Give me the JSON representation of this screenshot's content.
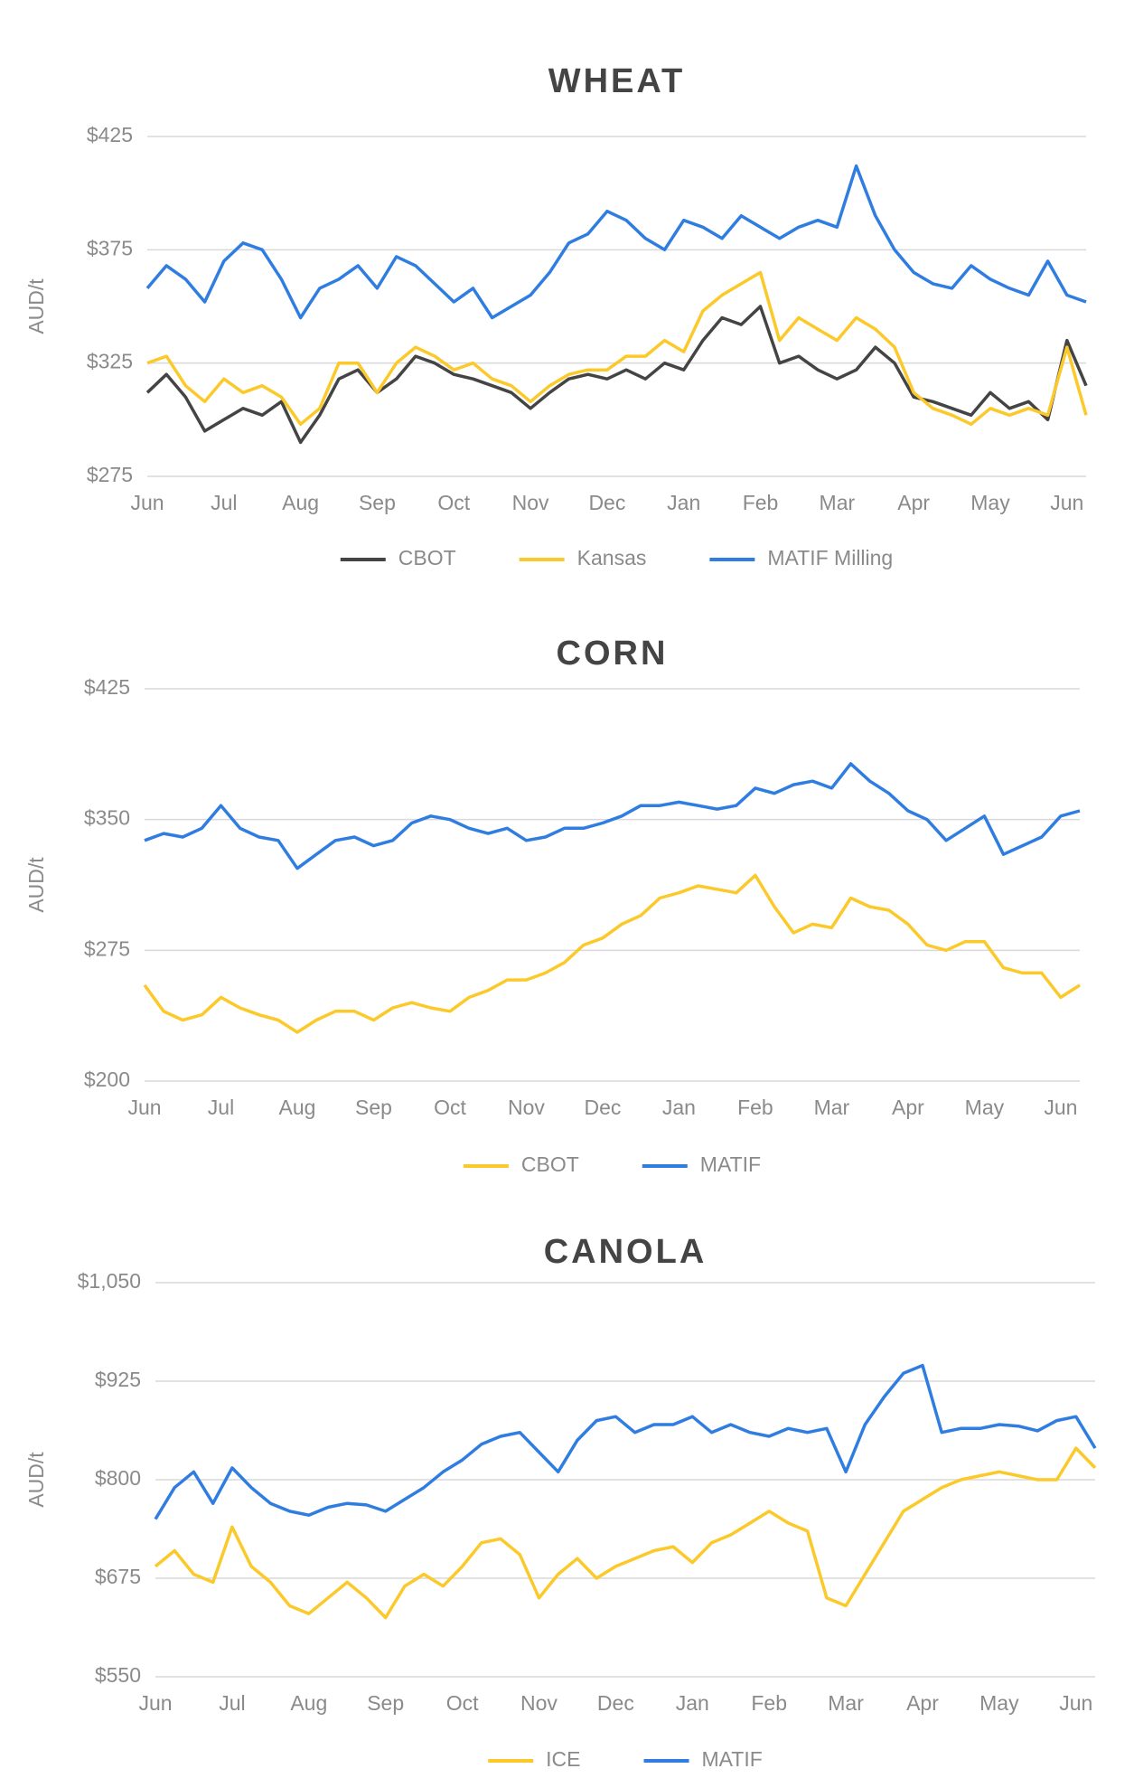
{
  "chart_data": [
    {
      "type": "line",
      "title": "WHEAT",
      "y_label": "AUD/t",
      "categories": [
        "Jun",
        null,
        null,
        null,
        "Jul",
        null,
        null,
        null,
        "Aug",
        null,
        null,
        null,
        "Sep",
        null,
        null,
        null,
        "Oct",
        null,
        null,
        null,
        "Nov",
        null,
        null,
        null,
        "Dec",
        null,
        null,
        null,
        "Jan",
        null,
        null,
        null,
        "Feb",
        null,
        null,
        null,
        "Mar",
        null,
        null,
        null,
        "Apr",
        null,
        null,
        null,
        "May",
        null,
        null,
        null,
        "Jun",
        null
      ],
      "series": [
        {
          "name": "CBOT",
          "color": "#444444",
          "values": [
            312,
            320,
            310,
            295,
            300,
            305,
            302,
            308,
            290,
            302,
            318,
            322,
            312,
            318,
            328,
            325,
            320,
            318,
            315,
            312,
            305,
            312,
            318,
            320,
            318,
            322,
            318,
            325,
            322,
            335,
            345,
            342,
            350,
            325,
            328,
            322,
            318,
            322,
            332,
            325,
            310,
            308,
            305,
            302,
            312,
            305,
            308,
            300,
            335,
            315
          ]
        },
        {
          "name": "Kansas",
          "color": "#fcc92a",
          "values": [
            325,
            328,
            315,
            308,
            318,
            312,
            315,
            310,
            298,
            305,
            325,
            325,
            312,
            325,
            332,
            328,
            322,
            325,
            318,
            315,
            308,
            315,
            320,
            322,
            322,
            328,
            328,
            335,
            330,
            348,
            355,
            360,
            365,
            335,
            345,
            340,
            335,
            345,
            340,
            332,
            312,
            305,
            302,
            298,
            305,
            302,
            305,
            302,
            332,
            302
          ]
        },
        {
          "name": "MATIF Milling",
          "color": "#2f7de1",
          "values": [
            358,
            368,
            362,
            352,
            370,
            378,
            375,
            362,
            345,
            358,
            362,
            368,
            358,
            372,
            368,
            360,
            352,
            358,
            345,
            350,
            355,
            365,
            378,
            382,
            392,
            388,
            380,
            375,
            388,
            385,
            380,
            390,
            385,
            380,
            385,
            388,
            385,
            412,
            390,
            375,
            365,
            360,
            358,
            368,
            362,
            358,
            355,
            370,
            355,
            352
          ]
        }
      ],
      "ylim": [
        275,
        425
      ],
      "yticks": [
        {
          "value": 275,
          "label": "$275"
        },
        {
          "value": 325,
          "label": "$325"
        },
        {
          "value": 375,
          "label": "$375"
        },
        {
          "value": 425,
          "label": "$425"
        }
      ],
      "grid": true,
      "legend": "bottom"
    },
    {
      "type": "line",
      "title": "CORN",
      "y_label": "AUD/t",
      "categories": [
        "Jun",
        null,
        null,
        null,
        "Jul",
        null,
        null,
        null,
        "Aug",
        null,
        null,
        null,
        "Sep",
        null,
        null,
        null,
        "Oct",
        null,
        null,
        null,
        "Nov",
        null,
        null,
        null,
        "Dec",
        null,
        null,
        null,
        "Jan",
        null,
        null,
        null,
        "Feb",
        null,
        null,
        null,
        "Mar",
        null,
        null,
        null,
        "Apr",
        null,
        null,
        null,
        "May",
        null,
        null,
        null,
        "Jun",
        null
      ],
      "series": [
        {
          "name": "CBOT",
          "color": "#fcc92a",
          "values": [
            255,
            240,
            235,
            238,
            248,
            242,
            238,
            235,
            228,
            235,
            240,
            240,
            235,
            242,
            245,
            242,
            240,
            248,
            252,
            258,
            258,
            262,
            268,
            278,
            282,
            290,
            295,
            305,
            308,
            312,
            310,
            308,
            318,
            300,
            285,
            290,
            288,
            305,
            300,
            298,
            290,
            278,
            275,
            280,
            280,
            265,
            262,
            262,
            248,
            255
          ]
        },
        {
          "name": "MATIF",
          "color": "#2f7de1",
          "values": [
            338,
            342,
            340,
            345,
            358,
            345,
            340,
            338,
            322,
            330,
            338,
            340,
            335,
            338,
            348,
            352,
            350,
            345,
            342,
            345,
            338,
            340,
            345,
            345,
            348,
            352,
            358,
            358,
            360,
            358,
            356,
            358,
            368,
            365,
            370,
            372,
            368,
            382,
            372,
            365,
            355,
            350,
            338,
            345,
            352,
            330,
            335,
            340,
            352,
            355
          ]
        }
      ],
      "ylim": [
        200,
        425
      ],
      "yticks": [
        {
          "value": 200,
          "label": "$200"
        },
        {
          "value": 275,
          "label": "$275"
        },
        {
          "value": 350,
          "label": "$350"
        },
        {
          "value": 425,
          "label": "$425"
        }
      ],
      "grid": true,
      "legend": "bottom"
    },
    {
      "type": "line",
      "title": "CANOLA",
      "y_label": "AUD/t",
      "categories": [
        "Jun",
        null,
        null,
        null,
        "Jul",
        null,
        null,
        null,
        "Aug",
        null,
        null,
        null,
        "Sep",
        null,
        null,
        null,
        "Oct",
        null,
        null,
        null,
        "Nov",
        null,
        null,
        null,
        "Dec",
        null,
        null,
        null,
        "Jan",
        null,
        null,
        null,
        "Feb",
        null,
        null,
        null,
        "Mar",
        null,
        null,
        null,
        "Apr",
        null,
        null,
        null,
        "May",
        null,
        null,
        null,
        "Jun",
        null
      ],
      "series": [
        {
          "name": "ICE",
          "color": "#fcc92a",
          "values": [
            690,
            710,
            680,
            670,
            740,
            690,
            670,
            640,
            630,
            650,
            670,
            650,
            625,
            665,
            680,
            665,
            690,
            720,
            725,
            705,
            650,
            680,
            700,
            675,
            690,
            700,
            710,
            715,
            695,
            720,
            730,
            745,
            760,
            745,
            735,
            650,
            640,
            680,
            720,
            760,
            775,
            790,
            800,
            805,
            810,
            805,
            800,
            800,
            840,
            815
          ]
        },
        {
          "name": "MATIF",
          "color": "#2f7de1",
          "values": [
            750,
            790,
            810,
            770,
            815,
            790,
            770,
            760,
            755,
            765,
            770,
            768,
            760,
            775,
            790,
            810,
            825,
            845,
            855,
            860,
            835,
            810,
            850,
            875,
            880,
            860,
            870,
            870,
            880,
            860,
            870,
            860,
            855,
            865,
            860,
            865,
            810,
            870,
            905,
            935,
            945,
            860,
            865,
            865,
            870,
            868,
            862,
            875,
            880,
            840
          ]
        }
      ],
      "ylim": [
        550,
        1050
      ],
      "yticks": [
        {
          "value": 550,
          "label": "$550"
        },
        {
          "value": 675,
          "label": "$675"
        },
        {
          "value": 800,
          "label": "$800"
        },
        {
          "value": 925,
          "label": "$925"
        },
        {
          "value": 1050,
          "label": "$1,050"
        }
      ],
      "grid": true,
      "legend": "bottom"
    }
  ]
}
